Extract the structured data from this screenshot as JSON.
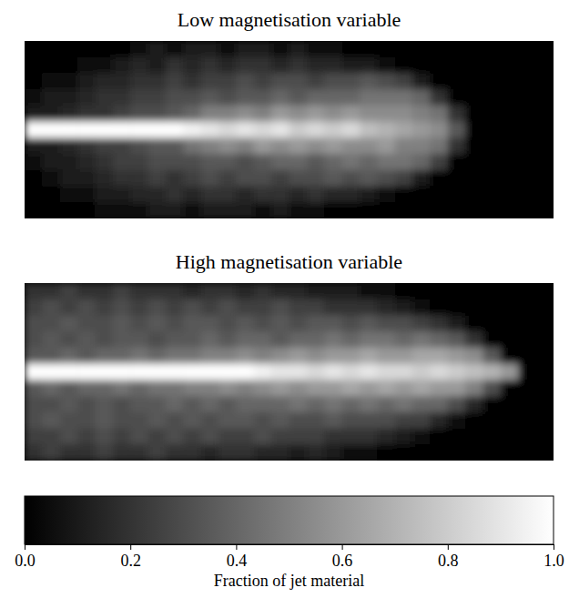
{
  "chart_data": [
    {
      "type": "heatmap",
      "title": "Low magnetisation variable",
      "tick_labels": false,
      "cells": [
        [
          0,
          0,
          0,
          0,
          0,
          0,
          0.05,
          0.1,
          0.05,
          0.1,
          0.1,
          0.05,
          0.1,
          0.1,
          0.05,
          0.1,
          0.05,
          0.05,
          0,
          0,
          0,
          0,
          0,
          0,
          0,
          0,
          0,
          0,
          0,
          0
        ],
        [
          0,
          0,
          0,
          0.05,
          0.05,
          0.1,
          0.15,
          0.1,
          0.2,
          0.15,
          0.2,
          0.15,
          0.2,
          0.2,
          0.15,
          0.2,
          0.15,
          0.15,
          0.1,
          0.1,
          0.05,
          0,
          0,
          0,
          0,
          0,
          0,
          0,
          0,
          0
        ],
        [
          0,
          0.05,
          0.05,
          0.1,
          0.15,
          0.15,
          0.2,
          0.2,
          0.25,
          0.2,
          0.25,
          0.25,
          0.3,
          0.25,
          0.3,
          0.3,
          0.25,
          0.3,
          0.3,
          0.35,
          0.3,
          0.25,
          0.1,
          0,
          0,
          0,
          0,
          0,
          0,
          0
        ],
        [
          0.05,
          0.1,
          0.1,
          0.15,
          0.2,
          0.2,
          0.25,
          0.25,
          0.3,
          0.3,
          0.35,
          0.3,
          0.35,
          0.35,
          0.4,
          0.35,
          0.4,
          0.4,
          0.4,
          0.45,
          0.45,
          0.45,
          0.4,
          0.2,
          0,
          0,
          0,
          0,
          0,
          0
        ],
        [
          0.1,
          0.1,
          0.15,
          0.2,
          0.2,
          0.25,
          0.3,
          0.3,
          0.35,
          0.4,
          0.5,
          0.5,
          0.55,
          0.5,
          0.6,
          0.55,
          0.6,
          0.55,
          0.6,
          0.55,
          0.55,
          0.55,
          0.5,
          0.45,
          0.2,
          0,
          0,
          0,
          0,
          0
        ],
        [
          1,
          1,
          1,
          1,
          1,
          1,
          1,
          1,
          1,
          0.95,
          0.9,
          0.85,
          0.9,
          0.85,
          0.9,
          0.8,
          0.85,
          0.8,
          0.85,
          0.75,
          0.7,
          0.65,
          0.6,
          0.55,
          0.35,
          0,
          0,
          0,
          0,
          0
        ],
        [
          0.1,
          0.1,
          0.15,
          0.2,
          0.25,
          0.25,
          0.3,
          0.35,
          0.35,
          0.45,
          0.5,
          0.55,
          0.5,
          0.6,
          0.55,
          0.6,
          0.55,
          0.6,
          0.55,
          0.55,
          0.6,
          0.5,
          0.5,
          0.45,
          0.2,
          0,
          0,
          0,
          0,
          0
        ],
        [
          0.05,
          0.1,
          0.1,
          0.15,
          0.2,
          0.25,
          0.25,
          0.3,
          0.3,
          0.3,
          0.35,
          0.35,
          0.3,
          0.35,
          0.4,
          0.4,
          0.35,
          0.4,
          0.45,
          0.4,
          0.45,
          0.45,
          0.4,
          0.25,
          0,
          0,
          0,
          0,
          0,
          0
        ],
        [
          0,
          0.05,
          0.1,
          0.1,
          0.15,
          0.2,
          0.2,
          0.25,
          0.2,
          0.25,
          0.3,
          0.25,
          0.3,
          0.3,
          0.25,
          0.3,
          0.3,
          0.35,
          0.3,
          0.35,
          0.3,
          0.25,
          0.1,
          0,
          0,
          0,
          0,
          0,
          0,
          0
        ],
        [
          0,
          0,
          0.05,
          0.05,
          0.1,
          0.1,
          0.15,
          0.15,
          0.2,
          0.15,
          0.2,
          0.2,
          0.15,
          0.2,
          0.2,
          0.15,
          0.2,
          0.15,
          0.15,
          0.1,
          0.05,
          0,
          0,
          0,
          0,
          0,
          0,
          0,
          0,
          0
        ],
        [
          0,
          0,
          0,
          0,
          0.05,
          0.05,
          0.05,
          0.1,
          0.1,
          0.05,
          0.1,
          0.1,
          0.1,
          0.05,
          0.1,
          0.05,
          0.05,
          0,
          0,
          0,
          0,
          0,
          0,
          0,
          0,
          0,
          0,
          0,
          0,
          0
        ]
      ]
    },
    {
      "type": "heatmap",
      "title": "High magnetisation variable",
      "tick_labels": false,
      "cells": [
        [
          0.2,
          0.2,
          0.25,
          0.2,
          0.2,
          0.25,
          0.2,
          0.2,
          0.2,
          0.15,
          0.2,
          0.2,
          0.15,
          0.2,
          0.15,
          0.15,
          0.1,
          0.1,
          0.1,
          0.05,
          0.05,
          0,
          0,
          0,
          0,
          0,
          0,
          0,
          0,
          0
        ],
        [
          0.25,
          0.3,
          0.25,
          0.3,
          0.25,
          0.3,
          0.25,
          0.3,
          0.25,
          0.3,
          0.25,
          0.3,
          0.25,
          0.25,
          0.3,
          0.25,
          0.25,
          0.2,
          0.2,
          0.2,
          0.15,
          0.1,
          0.05,
          0,
          0,
          0,
          0,
          0,
          0,
          0
        ],
        [
          0.3,
          0.3,
          0.35,
          0.3,
          0.3,
          0.35,
          0.3,
          0.35,
          0.3,
          0.35,
          0.35,
          0.3,
          0.35,
          0.3,
          0.35,
          0.3,
          0.35,
          0.35,
          0.3,
          0.35,
          0.3,
          0.3,
          0.25,
          0.2,
          0.1,
          0,
          0,
          0,
          0,
          0
        ],
        [
          0.3,
          0.35,
          0.3,
          0.35,
          0.3,
          0.35,
          0.35,
          0.3,
          0.35,
          0.35,
          0.4,
          0.35,
          0.4,
          0.4,
          0.35,
          0.4,
          0.4,
          0.45,
          0.4,
          0.45,
          0.45,
          0.4,
          0.45,
          0.4,
          0.35,
          0.2,
          0,
          0,
          0,
          0
        ],
        [
          0.35,
          0.35,
          0.4,
          0.35,
          0.4,
          0.4,
          0.45,
          0.4,
          0.45,
          0.45,
          0.5,
          0.5,
          0.55,
          0.5,
          0.55,
          0.6,
          0.55,
          0.6,
          0.6,
          0.65,
          0.6,
          0.6,
          0.65,
          0.65,
          0.6,
          0.55,
          0.35,
          0,
          0,
          0
        ],
        [
          1,
          1,
          1,
          1,
          1,
          1,
          1,
          1,
          1,
          1,
          1,
          1,
          1,
          0.95,
          0.9,
          0.9,
          0.85,
          0.9,
          0.85,
          0.9,
          0.85,
          0.85,
          0.8,
          0.85,
          0.8,
          0.75,
          0.7,
          0.6,
          0,
          0
        ],
        [
          0.35,
          0.4,
          0.35,
          0.4,
          0.4,
          0.45,
          0.4,
          0.45,
          0.45,
          0.5,
          0.5,
          0.55,
          0.5,
          0.55,
          0.6,
          0.55,
          0.6,
          0.6,
          0.65,
          0.6,
          0.65,
          0.6,
          0.65,
          0.6,
          0.6,
          0.5,
          0.3,
          0,
          0,
          0
        ],
        [
          0.3,
          0.3,
          0.35,
          0.3,
          0.35,
          0.3,
          0.35,
          0.35,
          0.4,
          0.35,
          0.4,
          0.35,
          0.4,
          0.4,
          0.4,
          0.45,
          0.4,
          0.45,
          0.4,
          0.45,
          0.4,
          0.45,
          0.4,
          0.4,
          0.3,
          0.15,
          0,
          0,
          0,
          0
        ],
        [
          0.3,
          0.35,
          0.3,
          0.3,
          0.35,
          0.3,
          0.3,
          0.35,
          0.3,
          0.35,
          0.3,
          0.35,
          0.35,
          0.3,
          0.35,
          0.3,
          0.3,
          0.35,
          0.3,
          0.3,
          0.3,
          0.25,
          0.25,
          0.15,
          0.05,
          0,
          0,
          0,
          0,
          0
        ],
        [
          0.25,
          0.25,
          0.3,
          0.25,
          0.3,
          0.25,
          0.3,
          0.25,
          0.3,
          0.25,
          0.3,
          0.25,
          0.25,
          0.3,
          0.25,
          0.25,
          0.25,
          0.2,
          0.2,
          0.2,
          0.15,
          0.1,
          0.05,
          0,
          0,
          0,
          0,
          0,
          0,
          0
        ],
        [
          0.2,
          0.25,
          0.2,
          0.2,
          0.25,
          0.2,
          0.2,
          0.25,
          0.2,
          0.2,
          0.15,
          0.2,
          0.2,
          0.15,
          0.15,
          0.1,
          0.15,
          0.1,
          0.05,
          0.05,
          0,
          0,
          0,
          0,
          0,
          0,
          0,
          0,
          0,
          0
        ]
      ]
    }
  ],
  "colorbar": {
    "label": "Fraction of jet material",
    "range": [
      0,
      1
    ],
    "ticks": [
      {
        "value": 0,
        "label": "0.0"
      },
      {
        "value": 0.2,
        "label": "0.2"
      },
      {
        "value": 0.4,
        "label": "0.4"
      },
      {
        "value": 0.6,
        "label": "0.6"
      },
      {
        "value": 0.8,
        "label": "0.8"
      },
      {
        "value": 1,
        "label": "1.0"
      }
    ]
  }
}
